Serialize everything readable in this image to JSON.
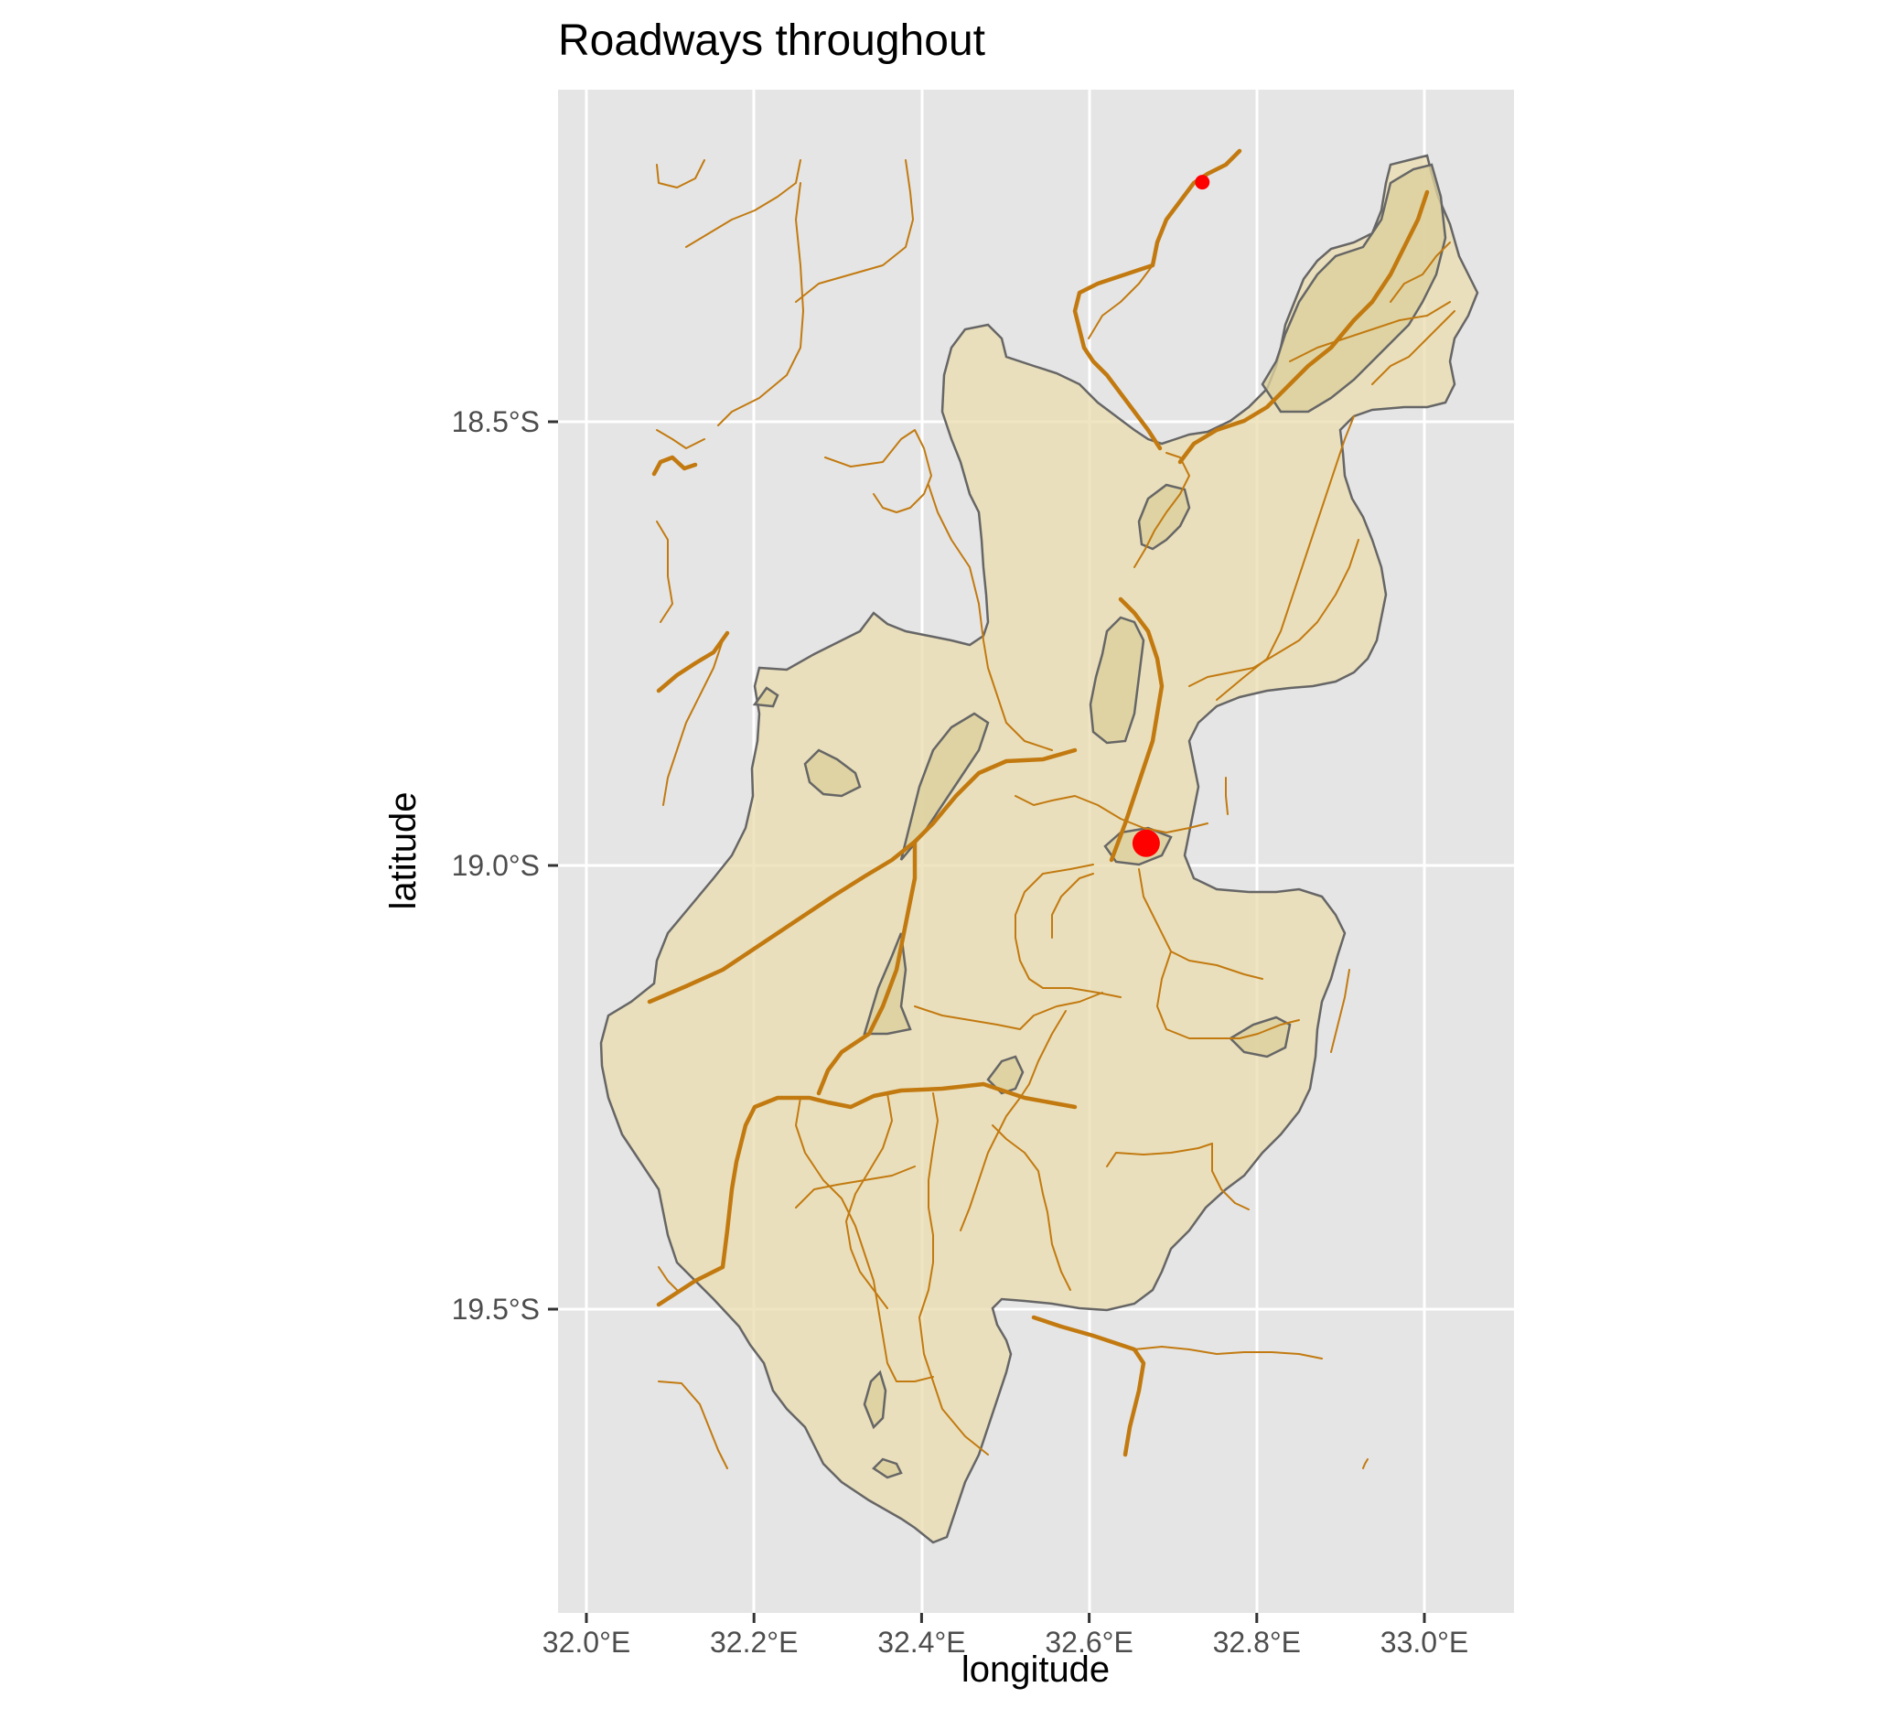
{
  "title": "Roadways throughout",
  "xlabel": "longitude",
  "ylabel": "latitude",
  "x_ticks": [
    {
      "value": 32.0,
      "label": "32.0°E"
    },
    {
      "value": 32.2,
      "label": "32.2°E"
    },
    {
      "value": 32.4,
      "label": "32.4°E"
    },
    {
      "value": 32.6,
      "label": "32.6°E"
    },
    {
      "value": 32.8,
      "label": "32.8°E"
    },
    {
      "value": 33.0,
      "label": "33.0°E"
    }
  ],
  "y_ticks": [
    {
      "value": -18.5,
      "label": "18.5°S"
    },
    {
      "value": -19.0,
      "label": "19.0°S"
    },
    {
      "value": -19.5,
      "label": "19.5°S"
    }
  ],
  "colors": {
    "panel_background": "#e5e5e5",
    "grid": "#ffffff",
    "region_fill": "#ebdcae",
    "region_outline": "#666666",
    "road": "#c27a10",
    "point": "#ff0000"
  },
  "points": [
    {
      "lon": 32.735,
      "lat": -18.23,
      "size": "small"
    },
    {
      "lon": 32.668,
      "lat": -18.975,
      "size": "large"
    }
  ]
}
